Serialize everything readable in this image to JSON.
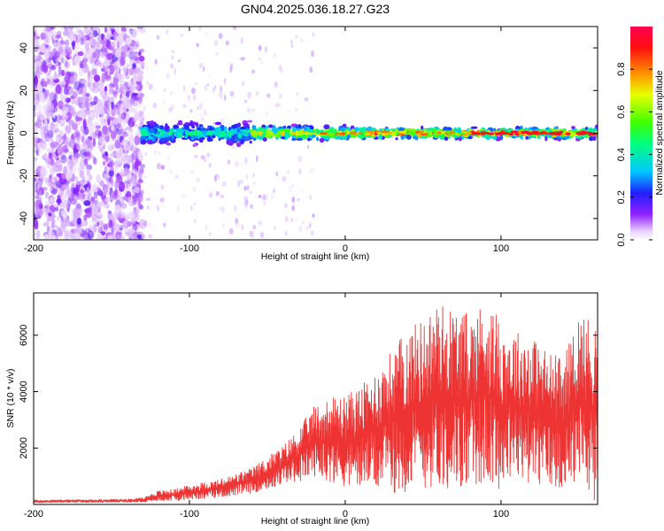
{
  "title": "GN04.2025.036.18.27.G23",
  "chart_data": [
    {
      "type": "heatmap",
      "xlabel": "Height of straight line (km)",
      "ylabel": "Frequency (Hz)",
      "xlim": [
        -200,
        162
      ],
      "ylim": [
        -50,
        50
      ],
      "xticks": [
        -200,
        -100,
        0,
        100
      ],
      "yticks": [
        -40,
        -20,
        0,
        20,
        40
      ],
      "colorbar": {
        "label": "Normalized spectral amplitude",
        "range": [
          0,
          1
        ],
        "ticks": [
          "0.0",
          "0.2",
          "0.4",
          "0.6",
          "0.8"
        ]
      },
      "features": [
        {
          "x_range": [
            -200,
            -130
          ],
          "description_level": "scattered low-amplitude noise across all frequencies"
        },
        {
          "x_range": [
            -130,
            -60
          ],
          "frequency_center": 0,
          "spread_hz": 6,
          "amplitude_range": [
            0.15,
            0.45
          ]
        },
        {
          "x_range": [
            -60,
            0
          ],
          "frequency_center": 0,
          "spread_hz": 4,
          "amplitude_range": [
            0.3,
            0.9
          ]
        },
        {
          "x_range": [
            0,
            162
          ],
          "frequency_center": 0,
          "spread_hz": 3,
          "amplitude_range": [
            0.4,
            0.95
          ]
        }
      ]
    },
    {
      "type": "line",
      "xlabel": "Height of straight line (km)",
      "ylabel": "SNR (10 * v/v)",
      "xlim": [
        -200,
        162
      ],
      "ylim": [
        0,
        7500
      ],
      "xticks": [
        -200,
        -100,
        0,
        100
      ],
      "yticks": [
        2000,
        4000,
        6000
      ],
      "line_color": "#ee3333",
      "series": [
        {
          "x": [
            -200,
            -180,
            -160,
            -140,
            -130,
            -120,
            -110,
            -100,
            -90,
            -80,
            -70,
            -60,
            -50,
            -40,
            -30,
            -20,
            -10,
            0,
            10,
            20,
            30,
            40,
            50,
            60,
            70,
            80,
            90,
            100,
            110,
            120,
            130,
            140,
            150,
            160
          ],
          "envelope_high": [
            150,
            180,
            180,
            200,
            250,
            500,
            550,
            700,
            800,
            900,
            1100,
            1300,
            1700,
            2100,
            2700,
            3500,
            3800,
            3900,
            4200,
            4800,
            5500,
            6300,
            6600,
            7200,
            7000,
            6800,
            7300,
            6500,
            6200,
            6000,
            5500,
            5200,
            6800,
            6600
          ],
          "envelope_low": [
            60,
            60,
            60,
            70,
            80,
            100,
            120,
            150,
            200,
            250,
            300,
            400,
            500,
            700,
            800,
            1000,
            800,
            600,
            600,
            500,
            400,
            400,
            500,
            600,
            500,
            600,
            700,
            500,
            800,
            700,
            500,
            600,
            900,
            100
          ]
        }
      ]
    }
  ]
}
